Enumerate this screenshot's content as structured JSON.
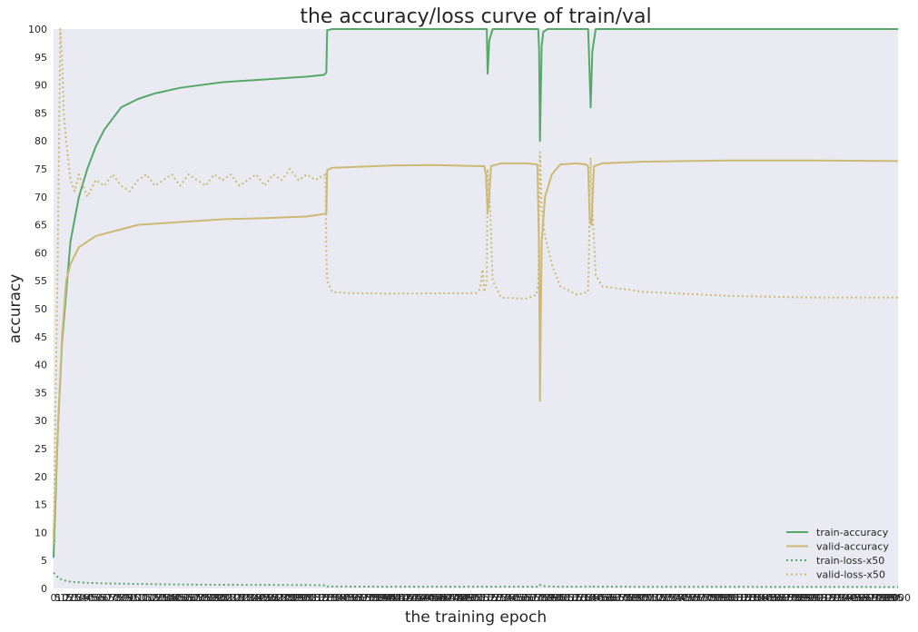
{
  "chart_data": {
    "type": "line",
    "title": "the accuracy/loss curve of train/val",
    "xlabel": "the training epoch",
    "ylabel": "accuracy",
    "xlim": [
      0,
      1000
    ],
    "ylim": [
      0,
      100
    ],
    "yticks": [
      0,
      5,
      10,
      15,
      20,
      25,
      30,
      35,
      40,
      45,
      50,
      55,
      60,
      65,
      70,
      75,
      80,
      85,
      90,
      95,
      100
    ],
    "xticks_note": "0, 5, 10, ... every 5 epochs (labels overlap)",
    "legend_position": "lower-right",
    "background_color": "#eaeaf2",
    "colors": {
      "green": "#55a868",
      "tan": "#ccb974"
    },
    "series": [
      {
        "name": "train-accuracy",
        "color": "#55a868",
        "style": "solid",
        "points": [
          [
            0,
            5.5
          ],
          [
            5,
            28
          ],
          [
            10,
            44
          ],
          [
            20,
            62
          ],
          [
            30,
            70
          ],
          [
            40,
            75
          ],
          [
            50,
            79
          ],
          [
            60,
            82
          ],
          [
            70,
            84
          ],
          [
            80,
            86
          ],
          [
            100,
            87.5
          ],
          [
            120,
            88.5
          ],
          [
            150,
            89.5
          ],
          [
            200,
            90.5
          ],
          [
            250,
            91
          ],
          [
            300,
            91.5
          ],
          [
            320,
            91.8
          ],
          [
            323,
            92.2
          ],
          [
            324,
            99.8
          ],
          [
            330,
            100
          ],
          [
            510,
            100
          ],
          [
            513,
            100
          ],
          [
            514,
            92
          ],
          [
            516,
            98
          ],
          [
            520,
            100
          ],
          [
            574,
            100
          ],
          [
            575,
            96
          ],
          [
            576,
            80
          ],
          [
            578,
            97
          ],
          [
            580,
            99.5
          ],
          [
            585,
            100
          ],
          [
            633,
            100
          ],
          [
            634,
            96
          ],
          [
            636,
            86
          ],
          [
            638,
            96
          ],
          [
            642,
            100
          ],
          [
            1000,
            100
          ]
        ]
      },
      {
        "name": "valid-accuracy",
        "color": "#ccb974",
        "style": "solid",
        "points": [
          [
            0,
            9
          ],
          [
            5,
            28
          ],
          [
            10,
            45
          ],
          [
            15,
            55
          ],
          [
            20,
            58
          ],
          [
            30,
            61
          ],
          [
            50,
            63
          ],
          [
            75,
            64
          ],
          [
            100,
            65
          ],
          [
            150,
            65.5
          ],
          [
            200,
            66
          ],
          [
            250,
            66.2
          ],
          [
            300,
            66.5
          ],
          [
            323,
            67
          ],
          [
            324,
            74.8
          ],
          [
            330,
            75.2
          ],
          [
            400,
            75.6
          ],
          [
            450,
            75.7
          ],
          [
            500,
            75.5
          ],
          [
            510,
            75.5
          ],
          [
            512,
            74
          ],
          [
            514,
            67
          ],
          [
            516,
            70
          ],
          [
            518,
            75.5
          ],
          [
            530,
            76
          ],
          [
            560,
            76
          ],
          [
            573,
            75.8
          ],
          [
            575,
            60
          ],
          [
            576,
            33.5
          ],
          [
            578,
            62
          ],
          [
            582,
            70
          ],
          [
            590,
            74
          ],
          [
            600,
            75.8
          ],
          [
            620,
            76
          ],
          [
            630,
            75.8
          ],
          [
            633,
            75.5
          ],
          [
            635,
            66
          ],
          [
            637,
            65
          ],
          [
            640,
            75.5
          ],
          [
            650,
            76
          ],
          [
            700,
            76.3
          ],
          [
            800,
            76.5
          ],
          [
            900,
            76.5
          ],
          [
            1000,
            76.4
          ]
        ]
      },
      {
        "name": "train-loss-x50",
        "color": "#55a868",
        "style": "dotted",
        "points": [
          [
            0,
            2.8
          ],
          [
            5,
            2
          ],
          [
            10,
            1.5
          ],
          [
            20,
            1.2
          ],
          [
            40,
            1
          ],
          [
            60,
            0.9
          ],
          [
            100,
            0.8
          ],
          [
            150,
            0.7
          ],
          [
            200,
            0.65
          ],
          [
            300,
            0.6
          ],
          [
            323,
            0.55
          ],
          [
            324,
            0.35
          ],
          [
            400,
            0.3
          ],
          [
            575,
            0.3
          ],
          [
            576,
            0.6
          ],
          [
            580,
            0.4
          ],
          [
            600,
            0.3
          ],
          [
            635,
            0.3
          ],
          [
            636,
            0.5
          ],
          [
            640,
            0.3
          ],
          [
            1000,
            0.25
          ]
        ]
      },
      {
        "name": "valid-loss-x50",
        "color": "#ccb974",
        "style": "dotted",
        "points": [
          [
            0,
            8
          ],
          [
            5,
            60
          ],
          [
            8,
            100
          ],
          [
            10,
            95
          ],
          [
            12,
            85
          ],
          [
            15,
            80
          ],
          [
            20,
            73
          ],
          [
            25,
            71
          ],
          [
            30,
            74
          ],
          [
            40,
            70
          ],
          [
            50,
            73
          ],
          [
            60,
            72
          ],
          [
            70,
            74
          ],
          [
            80,
            72
          ],
          [
            90,
            71
          ],
          [
            100,
            73
          ],
          [
            110,
            74
          ],
          [
            120,
            72
          ],
          [
            130,
            73
          ],
          [
            140,
            74
          ],
          [
            150,
            72
          ],
          [
            160,
            74
          ],
          [
            170,
            73
          ],
          [
            180,
            72
          ],
          [
            190,
            74
          ],
          [
            200,
            73
          ],
          [
            210,
            74
          ],
          [
            220,
            72
          ],
          [
            230,
            73
          ],
          [
            240,
            74
          ],
          [
            250,
            72
          ],
          [
            260,
            74
          ],
          [
            270,
            73
          ],
          [
            280,
            75
          ],
          [
            290,
            73
          ],
          [
            300,
            74
          ],
          [
            310,
            73
          ],
          [
            322,
            74
          ],
          [
            323,
            60
          ],
          [
            324,
            55
          ],
          [
            330,
            53
          ],
          [
            350,
            52.8
          ],
          [
            400,
            52.7
          ],
          [
            500,
            52.8
          ],
          [
            505,
            53.5
          ],
          [
            508,
            57
          ],
          [
            510,
            53
          ],
          [
            513,
            55
          ],
          [
            514,
            75
          ],
          [
            517,
            68
          ],
          [
            520,
            55
          ],
          [
            530,
            52
          ],
          [
            560,
            51.8
          ],
          [
            572,
            52.5
          ],
          [
            574,
            55
          ],
          [
            576,
            78
          ],
          [
            578,
            68
          ],
          [
            582,
            63
          ],
          [
            590,
            58
          ],
          [
            600,
            54
          ],
          [
            620,
            52.5
          ],
          [
            633,
            53
          ],
          [
            634,
            60
          ],
          [
            636,
            77
          ],
          [
            638,
            68
          ],
          [
            642,
            56
          ],
          [
            650,
            54
          ],
          [
            700,
            53
          ],
          [
            800,
            52.3
          ],
          [
            900,
            52
          ],
          [
            1000,
            52
          ]
        ]
      }
    ]
  }
}
